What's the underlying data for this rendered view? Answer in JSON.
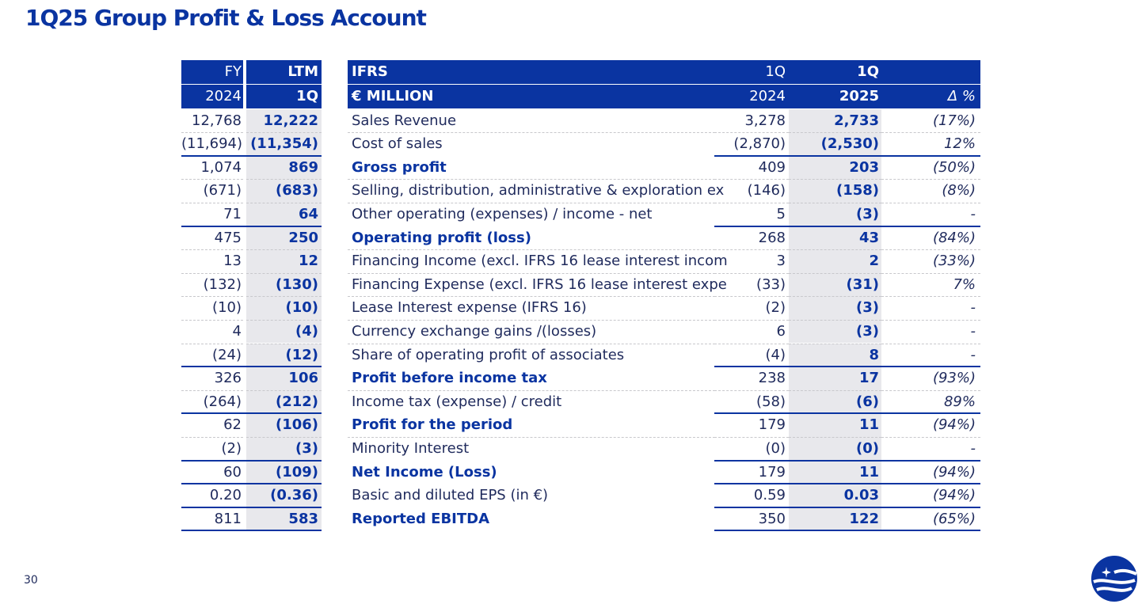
{
  "title": "1Q25 Group Profit & Loss Account",
  "page_number": "30",
  "logo": {
    "icon": "company-logo-icon",
    "color": "#0a34a1"
  },
  "header": {
    "row1": {
      "fy": "FY",
      "ltm": "LTM",
      "label": "IFRS",
      "q24": "1Q",
      "q25": "1Q",
      "delta": ""
    },
    "row2": {
      "fy": "2024",
      "ltm": "1Q",
      "label": "€ MILLION",
      "q24": "2024",
      "q25": "2025",
      "delta": "Δ %"
    }
  },
  "rows": [
    {
      "fy": "12,768",
      "ltm": "12,222",
      "label": "Sales Revenue",
      "q24": "3,278",
      "q25": "2,733",
      "delta": "(17%)"
    },
    {
      "fy": "(11,694)",
      "ltm": "(11,354)",
      "label": "Cost of sales",
      "q24": "(2,870)",
      "q25": "(2,530)",
      "delta": "12%"
    },
    {
      "fy": "1,074",
      "ltm": "869",
      "label": "Gross profit",
      "q24": "409",
      "q25": "203",
      "delta": "(50%)"
    },
    {
      "fy": "(671)",
      "ltm": "(683)",
      "label": "Selling, distribution, administrative & exploration ex",
      "q24": "(146)",
      "q25": "(158)",
      "delta": "(8%)"
    },
    {
      "fy": "71",
      "ltm": "64",
      "label": "Other operating (expenses) / income - net",
      "q24": "5",
      "q25": "(3)",
      "delta": "-"
    },
    {
      "fy": "475",
      "ltm": "250",
      "label": "Operating profit (loss)",
      "q24": "268",
      "q25": "43",
      "delta": "(84%)"
    },
    {
      "fy": "13",
      "ltm": "12",
      "label": "Financing Income (excl. IFRS 16 lease interest incom",
      "q24": "3",
      "q25": "2",
      "delta": "(33%)"
    },
    {
      "fy": "(132)",
      "ltm": "(130)",
      "label": "Financing Expense (excl. IFRS 16 lease interest expe",
      "q24": "(33)",
      "q25": "(31)",
      "delta": "7%"
    },
    {
      "fy": "(10)",
      "ltm": "(10)",
      "label": "Lease Interest expense (IFRS 16)",
      "q24": "(2)",
      "q25": "(3)",
      "delta": "-"
    },
    {
      "fy": "4",
      "ltm": "(4)",
      "label": "Currency exchange gains /(losses)",
      "q24": "6",
      "q25": "(3)",
      "delta": "-"
    },
    {
      "fy": "(24)",
      "ltm": "(12)",
      "label": "Share of operating profit of associates",
      "q24": "(4)",
      "q25": "8",
      "delta": "-"
    },
    {
      "fy": "326",
      "ltm": "106",
      "label": "Profit before income tax",
      "q24": "238",
      "q25": "17",
      "delta": "(93%)"
    },
    {
      "fy": "(264)",
      "ltm": "(212)",
      "label": "Income tax (expense) / credit",
      "q24": "(58)",
      "q25": "(6)",
      "delta": "89%"
    },
    {
      "fy": "62",
      "ltm": "(106)",
      "label": "Profit for the period",
      "q24": "179",
      "q25": "11",
      "delta": "(94%)"
    },
    {
      "fy": "(2)",
      "ltm": "(3)",
      "label": "Minority Interest",
      "q24": "(0)",
      "q25": "(0)",
      "delta": "-"
    },
    {
      "fy": "60",
      "ltm": "(109)",
      "label": "Net Income (Loss)",
      "q24": "179",
      "q25": "11",
      "delta": "(94%)"
    },
    {
      "fy": "0.20",
      "ltm": "(0.36)",
      "label": "Basic and diluted EPS (in €)",
      "q24": "0.59",
      "q25": "0.03",
      "delta": "(94%)"
    },
    {
      "fy": "811",
      "ltm": "583",
      "label": "Reported EBITDA",
      "q24": "350",
      "q25": "122",
      "delta": "(65%)"
    }
  ]
}
